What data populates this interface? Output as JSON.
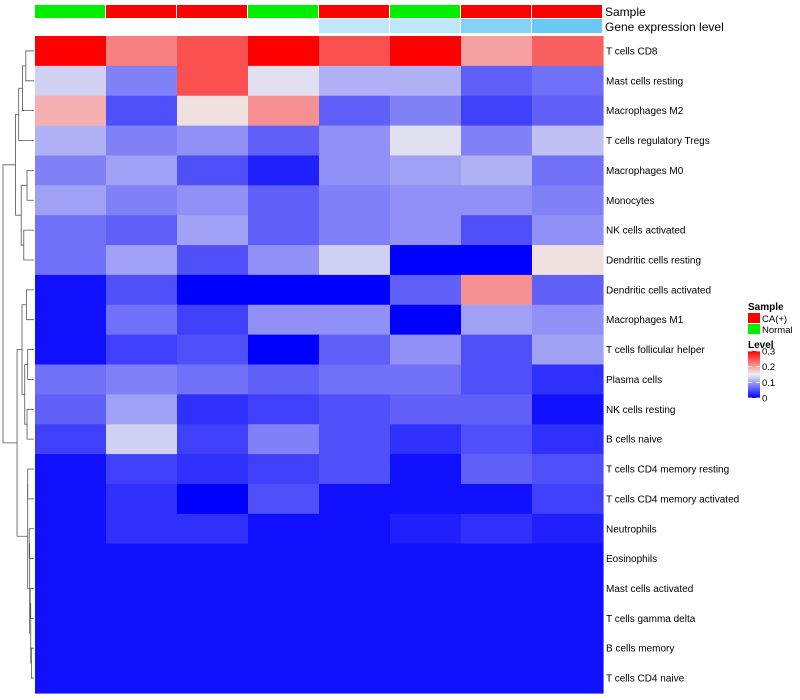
{
  "chart_data": {
    "type": "heatmap",
    "rows": [
      "T cells CD8",
      "Mast cells resting",
      "Macrophages M2",
      "T cells regulatory  Tregs",
      "Macrophages M0",
      "Monocytes",
      "NK cells activated",
      "Dendritic cells resting",
      "Dendritic cells activated",
      "Macrophages M1",
      "T cells follicular helper",
      "Plasma cells",
      "NK cells resting",
      "B cells naive",
      "T cells CD4 memory resting",
      "T cells CD4 memory activated",
      "Neutrophils",
      "Eosinophils",
      "Mast cells activated",
      "T cells gamma delta",
      "B cells memory",
      "T cells CD4 naive"
    ],
    "sample_groups": [
      "Normal",
      "CA(+)",
      "CA(+)",
      "Normal",
      "CA(+)",
      "Normal",
      "CA(+)",
      "CA(+)"
    ],
    "gene_expression_level": [
      0.0,
      0.0,
      0.05,
      0.05,
      0.4,
      0.4,
      0.75,
      0.9
    ],
    "values": [
      [
        0.3,
        0.22,
        0.25,
        0.3,
        0.25,
        0.3,
        0.2,
        0.24
      ],
      [
        0.13,
        0.08,
        0.25,
        0.14,
        0.11,
        0.11,
        0.06,
        0.07
      ],
      [
        0.19,
        0.05,
        0.16,
        0.21,
        0.06,
        0.08,
        0.04,
        0.06
      ],
      [
        0.11,
        0.08,
        0.09,
        0.06,
        0.09,
        0.14,
        0.08,
        0.12
      ],
      [
        0.08,
        0.1,
        0.05,
        0.02,
        0.09,
        0.1,
        0.11,
        0.07
      ],
      [
        0.1,
        0.08,
        0.09,
        0.06,
        0.08,
        0.09,
        0.09,
        0.08
      ],
      [
        0.07,
        0.06,
        0.1,
        0.06,
        0.08,
        0.09,
        0.05,
        0.09
      ],
      [
        0.07,
        0.1,
        0.05,
        0.09,
        0.13,
        0.0,
        0.0,
        0.16
      ],
      [
        0.01,
        0.05,
        0.0,
        0.0,
        0.0,
        0.06,
        0.21,
        0.06
      ],
      [
        0.01,
        0.07,
        0.04,
        0.09,
        0.09,
        0.0,
        0.1,
        0.09
      ],
      [
        0.01,
        0.04,
        0.05,
        0.0,
        0.06,
        0.09,
        0.05,
        0.1
      ],
      [
        0.07,
        0.08,
        0.07,
        0.06,
        0.07,
        0.07,
        0.05,
        0.03
      ],
      [
        0.06,
        0.1,
        0.03,
        0.04,
        0.05,
        0.06,
        0.06,
        0.01
      ],
      [
        0.04,
        0.13,
        0.04,
        0.08,
        0.05,
        0.03,
        0.05,
        0.03
      ],
      [
        0.01,
        0.04,
        0.03,
        0.04,
        0.05,
        0.01,
        0.06,
        0.05
      ],
      [
        0.01,
        0.03,
        0.0,
        0.05,
        0.01,
        0.01,
        0.01,
        0.04
      ],
      [
        0.01,
        0.03,
        0.03,
        0.01,
        0.01,
        0.02,
        0.03,
        0.02
      ],
      [
        0.01,
        0.01,
        0.01,
        0.01,
        0.01,
        0.01,
        0.01,
        0.01
      ],
      [
        0.01,
        0.01,
        0.01,
        0.01,
        0.01,
        0.01,
        0.01,
        0.01
      ],
      [
        0.01,
        0.01,
        0.01,
        0.01,
        0.01,
        0.01,
        0.01,
        0.01
      ],
      [
        0.01,
        0.01,
        0.01,
        0.01,
        0.01,
        0.01,
        0.01,
        0.01
      ],
      [
        0.01,
        0.01,
        0.01,
        0.01,
        0.01,
        0.01,
        0.01,
        0.01
      ]
    ],
    "color_scale": {
      "min": 0,
      "mid": 0.15,
      "max": 0.3,
      "low": "#0000ff",
      "mid_color": "#f0f0f0",
      "high": "#ff0000"
    },
    "annotation_rows": [
      "Sample",
      "Gene expression level"
    ],
    "annotation_gradient": {
      "low": "#ffffff",
      "high": "#59c3f0"
    },
    "legend": {
      "sample_title": "Sample",
      "sample_items": [
        {
          "label": "CA(+)",
          "color": "#ff0000"
        },
        {
          "label": "Normal",
          "color": "#00ee00"
        }
      ],
      "level_title": "Level",
      "level_ticks": [
        "0.3",
        "0.2",
        "0.1",
        "0"
      ],
      "level_tick_values": [
        0.3,
        0.2,
        0.1,
        0.0
      ]
    },
    "dendrogram": [
      [
        0,
        1,
        0.08
      ],
      [
        22,
        2,
        0.15
      ],
      [
        23,
        3,
        0.25
      ],
      [
        4,
        5,
        0.06
      ],
      [
        6,
        7,
        0.12
      ],
      [
        25,
        26,
        0.18
      ],
      [
        24,
        27,
        0.35
      ],
      [
        8,
        9,
        0.07
      ],
      [
        10,
        11,
        0.05
      ],
      [
        12,
        13,
        0.06
      ],
      [
        30,
        31,
        0.1
      ],
      [
        29,
        32,
        0.16
      ],
      [
        14,
        15,
        0.05
      ],
      [
        16,
        17,
        0.03
      ],
      [
        18,
        19,
        0.02
      ],
      [
        20,
        21,
        0.01
      ],
      [
        36,
        37,
        0.015
      ],
      [
        35,
        38,
        0.025
      ],
      [
        34,
        39,
        0.05
      ],
      [
        33,
        40,
        0.3
      ],
      [
        28,
        41,
        0.9
      ]
    ]
  }
}
